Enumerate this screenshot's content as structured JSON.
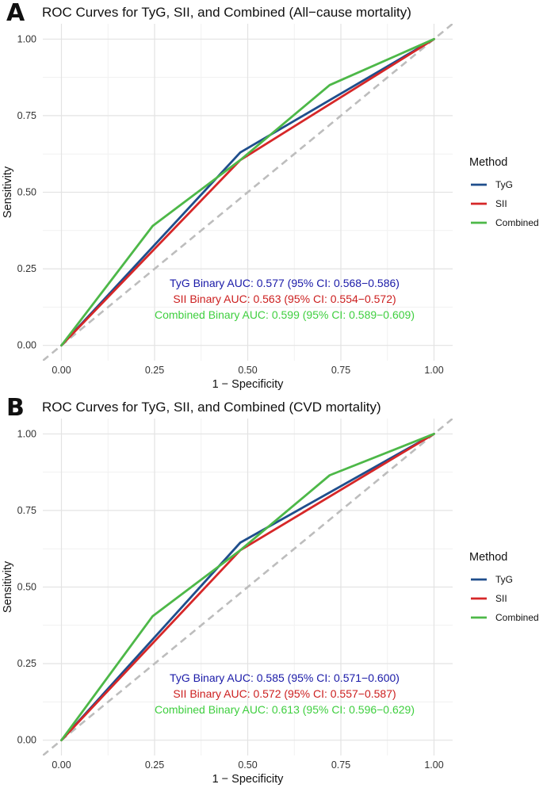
{
  "chart_data": [
    {
      "type": "line",
      "panel_label": "A",
      "title": "ROC Curves for TyG, SII, and Combined (All−cause mortality)",
      "xlabel": "1 − Specificity",
      "ylabel": "Sensitivity",
      "xlim": [
        -0.05,
        1.05
      ],
      "ylim": [
        -0.05,
        1.05
      ],
      "xticks": [
        "0.00",
        "0.25",
        "0.50",
        "0.75",
        "1.00"
      ],
      "yticks": [
        "0.00",
        "0.25",
        "0.50",
        "0.75",
        "1.00"
      ],
      "grid": true,
      "legend": {
        "title": "Method",
        "position": "right"
      },
      "series": [
        {
          "name": "TyG",
          "color": "#1f4e8c",
          "x": [
            0,
            0.48,
            1
          ],
          "y": [
            0,
            0.63,
            1
          ]
        },
        {
          "name": "SII",
          "color": "#d62728",
          "x": [
            0,
            0.48,
            1
          ],
          "y": [
            0,
            0.605,
            1
          ]
        },
        {
          "name": "Combined",
          "color": "#4db848",
          "x": [
            0,
            0.245,
            0.48,
            0.72,
            1
          ],
          "y": [
            0,
            0.39,
            0.605,
            0.85,
            1
          ]
        }
      ],
      "reference_line": {
        "color": "#bdbdbd",
        "style": "dashed",
        "x": [
          -0.05,
          1.05
        ],
        "y": [
          -0.05,
          1.05
        ]
      },
      "annotations": [
        {
          "text": "TyG Binary AUC: 0.577 (95% CI: 0.568−0.586)",
          "color": "#1a1aa8"
        },
        {
          "text": "SII Binary AUC: 0.563 (95% CI: 0.554−0.572)",
          "color": "#cc1f1f"
        },
        {
          "text": "Combined Binary AUC: 0.599 (95% CI: 0.589−0.609)",
          "color": "#3fcf3f"
        }
      ]
    },
    {
      "type": "line",
      "panel_label": "B",
      "title": "ROC Curves for TyG, SII, and Combined (CVD mortality)",
      "xlabel": "1 − Specificity",
      "ylabel": "Sensitivity",
      "xlim": [
        -0.05,
        1.05
      ],
      "ylim": [
        -0.05,
        1.05
      ],
      "xticks": [
        "0.00",
        "0.25",
        "0.50",
        "0.75",
        "1.00"
      ],
      "yticks": [
        "0.00",
        "0.25",
        "0.50",
        "0.75",
        "1.00"
      ],
      "grid": true,
      "legend": {
        "title": "Method",
        "position": "right"
      },
      "series": [
        {
          "name": "TyG",
          "color": "#1f4e8c",
          "x": [
            0,
            0.48,
            1
          ],
          "y": [
            0,
            0.645,
            1
          ]
        },
        {
          "name": "SII",
          "color": "#d62728",
          "x": [
            0,
            0.48,
            1
          ],
          "y": [
            0,
            0.62,
            1
          ]
        },
        {
          "name": "Combined",
          "color": "#4db848",
          "x": [
            0,
            0.245,
            0.48,
            0.72,
            1
          ],
          "y": [
            0,
            0.405,
            0.62,
            0.865,
            1
          ]
        }
      ],
      "reference_line": {
        "color": "#bdbdbd",
        "style": "dashed",
        "x": [
          -0.05,
          1.05
        ],
        "y": [
          -0.05,
          1.05
        ]
      },
      "annotations": [
        {
          "text": "TyG Binary AUC: 0.585 (95% CI: 0.571−0.600)",
          "color": "#1a1aa8"
        },
        {
          "text": "SII Binary AUC: 0.572 (95% CI: 0.557−0.587)",
          "color": "#cc1f1f"
        },
        {
          "text": "Combined Binary AUC: 0.613 (95% CI: 0.596−0.629)",
          "color": "#3fcf3f"
        }
      ]
    }
  ]
}
